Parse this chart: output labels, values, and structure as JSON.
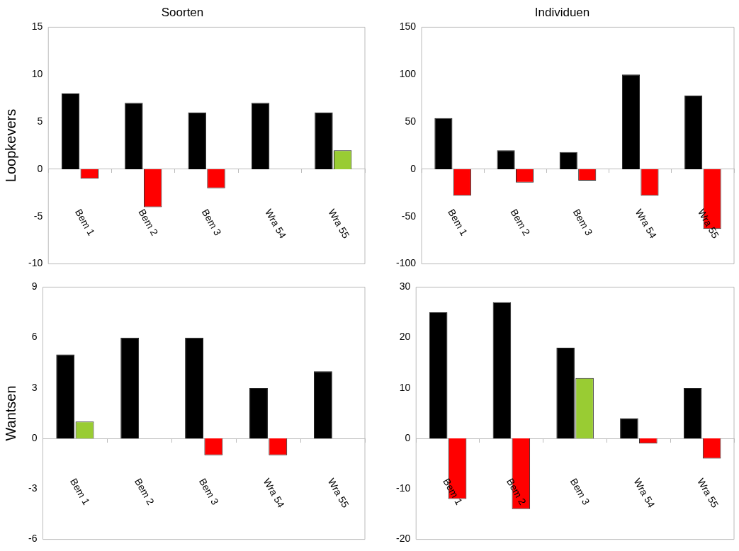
{
  "chart_data": [
    {
      "type": "bar",
      "title": "Soorten",
      "ylabel": "Loopkevers",
      "categories": [
        "Bem 1",
        "Bem 2",
        "Bem 3",
        "Wra 54",
        "Wra 55"
      ],
      "series": [
        {
          "color": "#000000",
          "values": [
            8,
            7,
            6,
            7,
            6
          ]
        },
        {
          "colors": [
            "#ff0000",
            "#ff0000",
            "#ff0000",
            null,
            "#99cc33"
          ],
          "values": [
            -1,
            -4,
            -2,
            null,
            2
          ]
        }
      ],
      "ylim": [
        -10,
        15
      ],
      "yticks": [
        -10,
        -5,
        0,
        5,
        10,
        15
      ]
    },
    {
      "type": "bar",
      "title": "Individuen",
      "categories": [
        "Bem 1",
        "Bem 2",
        "Bem 3",
        "Wra 54",
        "Wra 55"
      ],
      "series": [
        {
          "color": "#000000",
          "values": [
            54,
            20,
            18,
            100,
            78
          ]
        },
        {
          "colors": [
            "#ff0000",
            "#ff0000",
            "#ff0000",
            "#ff0000",
            "#ff0000"
          ],
          "values": [
            -28,
            -14,
            -12,
            -28,
            -63
          ]
        }
      ],
      "ylim": [
        -100,
        150
      ],
      "yticks": [
        -100,
        -50,
        0,
        50,
        100,
        150
      ]
    },
    {
      "type": "bar",
      "ylabel": "Wantsen",
      "categories": [
        "Bem 1",
        "Bem 2",
        "Bem 3",
        "Wra 54",
        "Wra 55"
      ],
      "series": [
        {
          "color": "#000000",
          "values": [
            5,
            6,
            6,
            3,
            4
          ]
        },
        {
          "colors": [
            "#99cc33",
            null,
            "#ff0000",
            "#ff0000",
            null
          ],
          "values": [
            1,
            null,
            -1,
            -1,
            null
          ]
        }
      ],
      "ylim": [
        -6,
        9
      ],
      "yticks": [
        -6,
        -3,
        0,
        3,
        6,
        9
      ]
    },
    {
      "type": "bar",
      "categories": [
        "Bem 1",
        "Bem 2",
        "Bem 3",
        "Wra 54",
        "Wra 55"
      ],
      "series": [
        {
          "color": "#000000",
          "values": [
            25,
            27,
            18,
            4,
            10
          ]
        },
        {
          "colors": [
            "#ff0000",
            "#ff0000",
            "#99cc33",
            "#ff0000",
            "#ff0000"
          ],
          "values": [
            -12,
            -14,
            12,
            -1,
            -4
          ]
        }
      ],
      "ylim": [
        -20,
        30
      ],
      "yticks": [
        -20,
        -10,
        0,
        10,
        20,
        30
      ]
    }
  ]
}
